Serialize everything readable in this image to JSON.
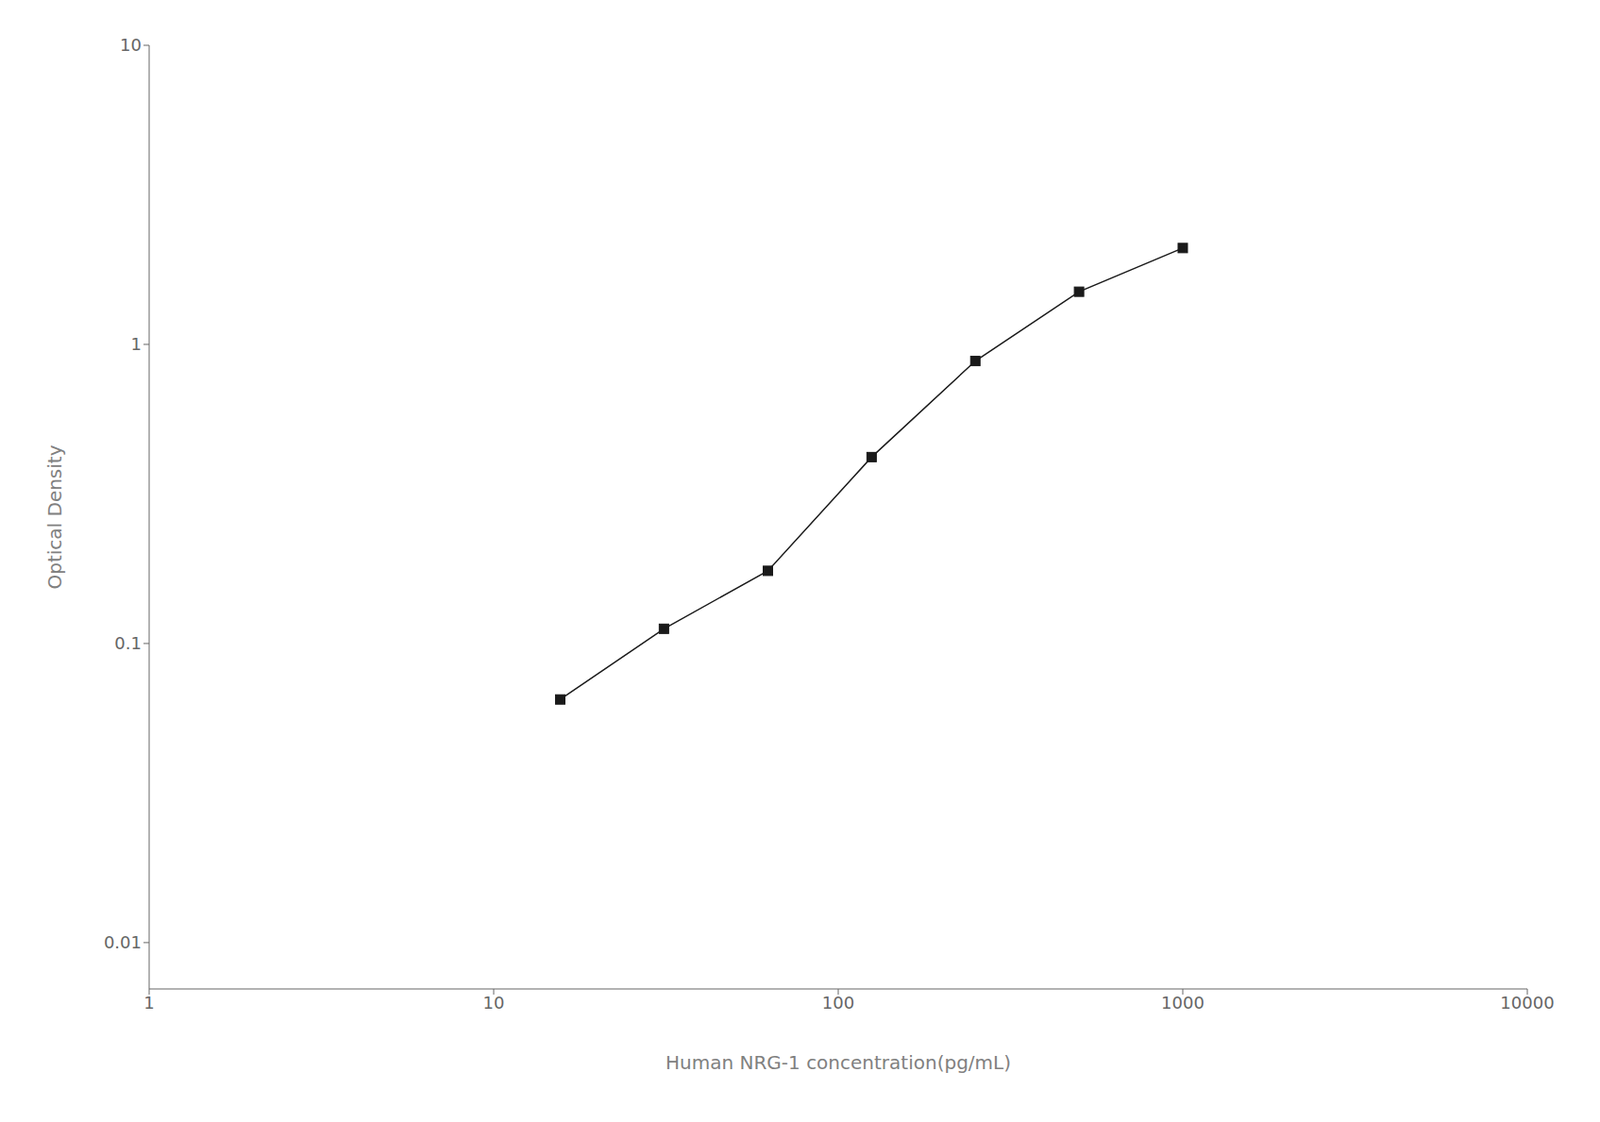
{
  "chart_data": {
    "type": "line",
    "x": [
      15.6,
      31.2,
      62.5,
      125,
      250,
      500,
      1000
    ],
    "values": [
      0.065,
      0.112,
      0.175,
      0.42,
      0.88,
      1.5,
      2.1
    ],
    "xlabel": "Human NRG-1 concentration(pg/mL)",
    "ylabel": "Optical Density",
    "xlim": [
      1,
      10000
    ],
    "ylim": [
      0.007,
      10
    ],
    "xticks": [
      1,
      10,
      100,
      1000,
      10000
    ],
    "yticks": [
      0.01,
      0.1,
      1,
      10
    ],
    "log": true,
    "grid": false,
    "color": "#1a1a1a",
    "marker": "square"
  }
}
